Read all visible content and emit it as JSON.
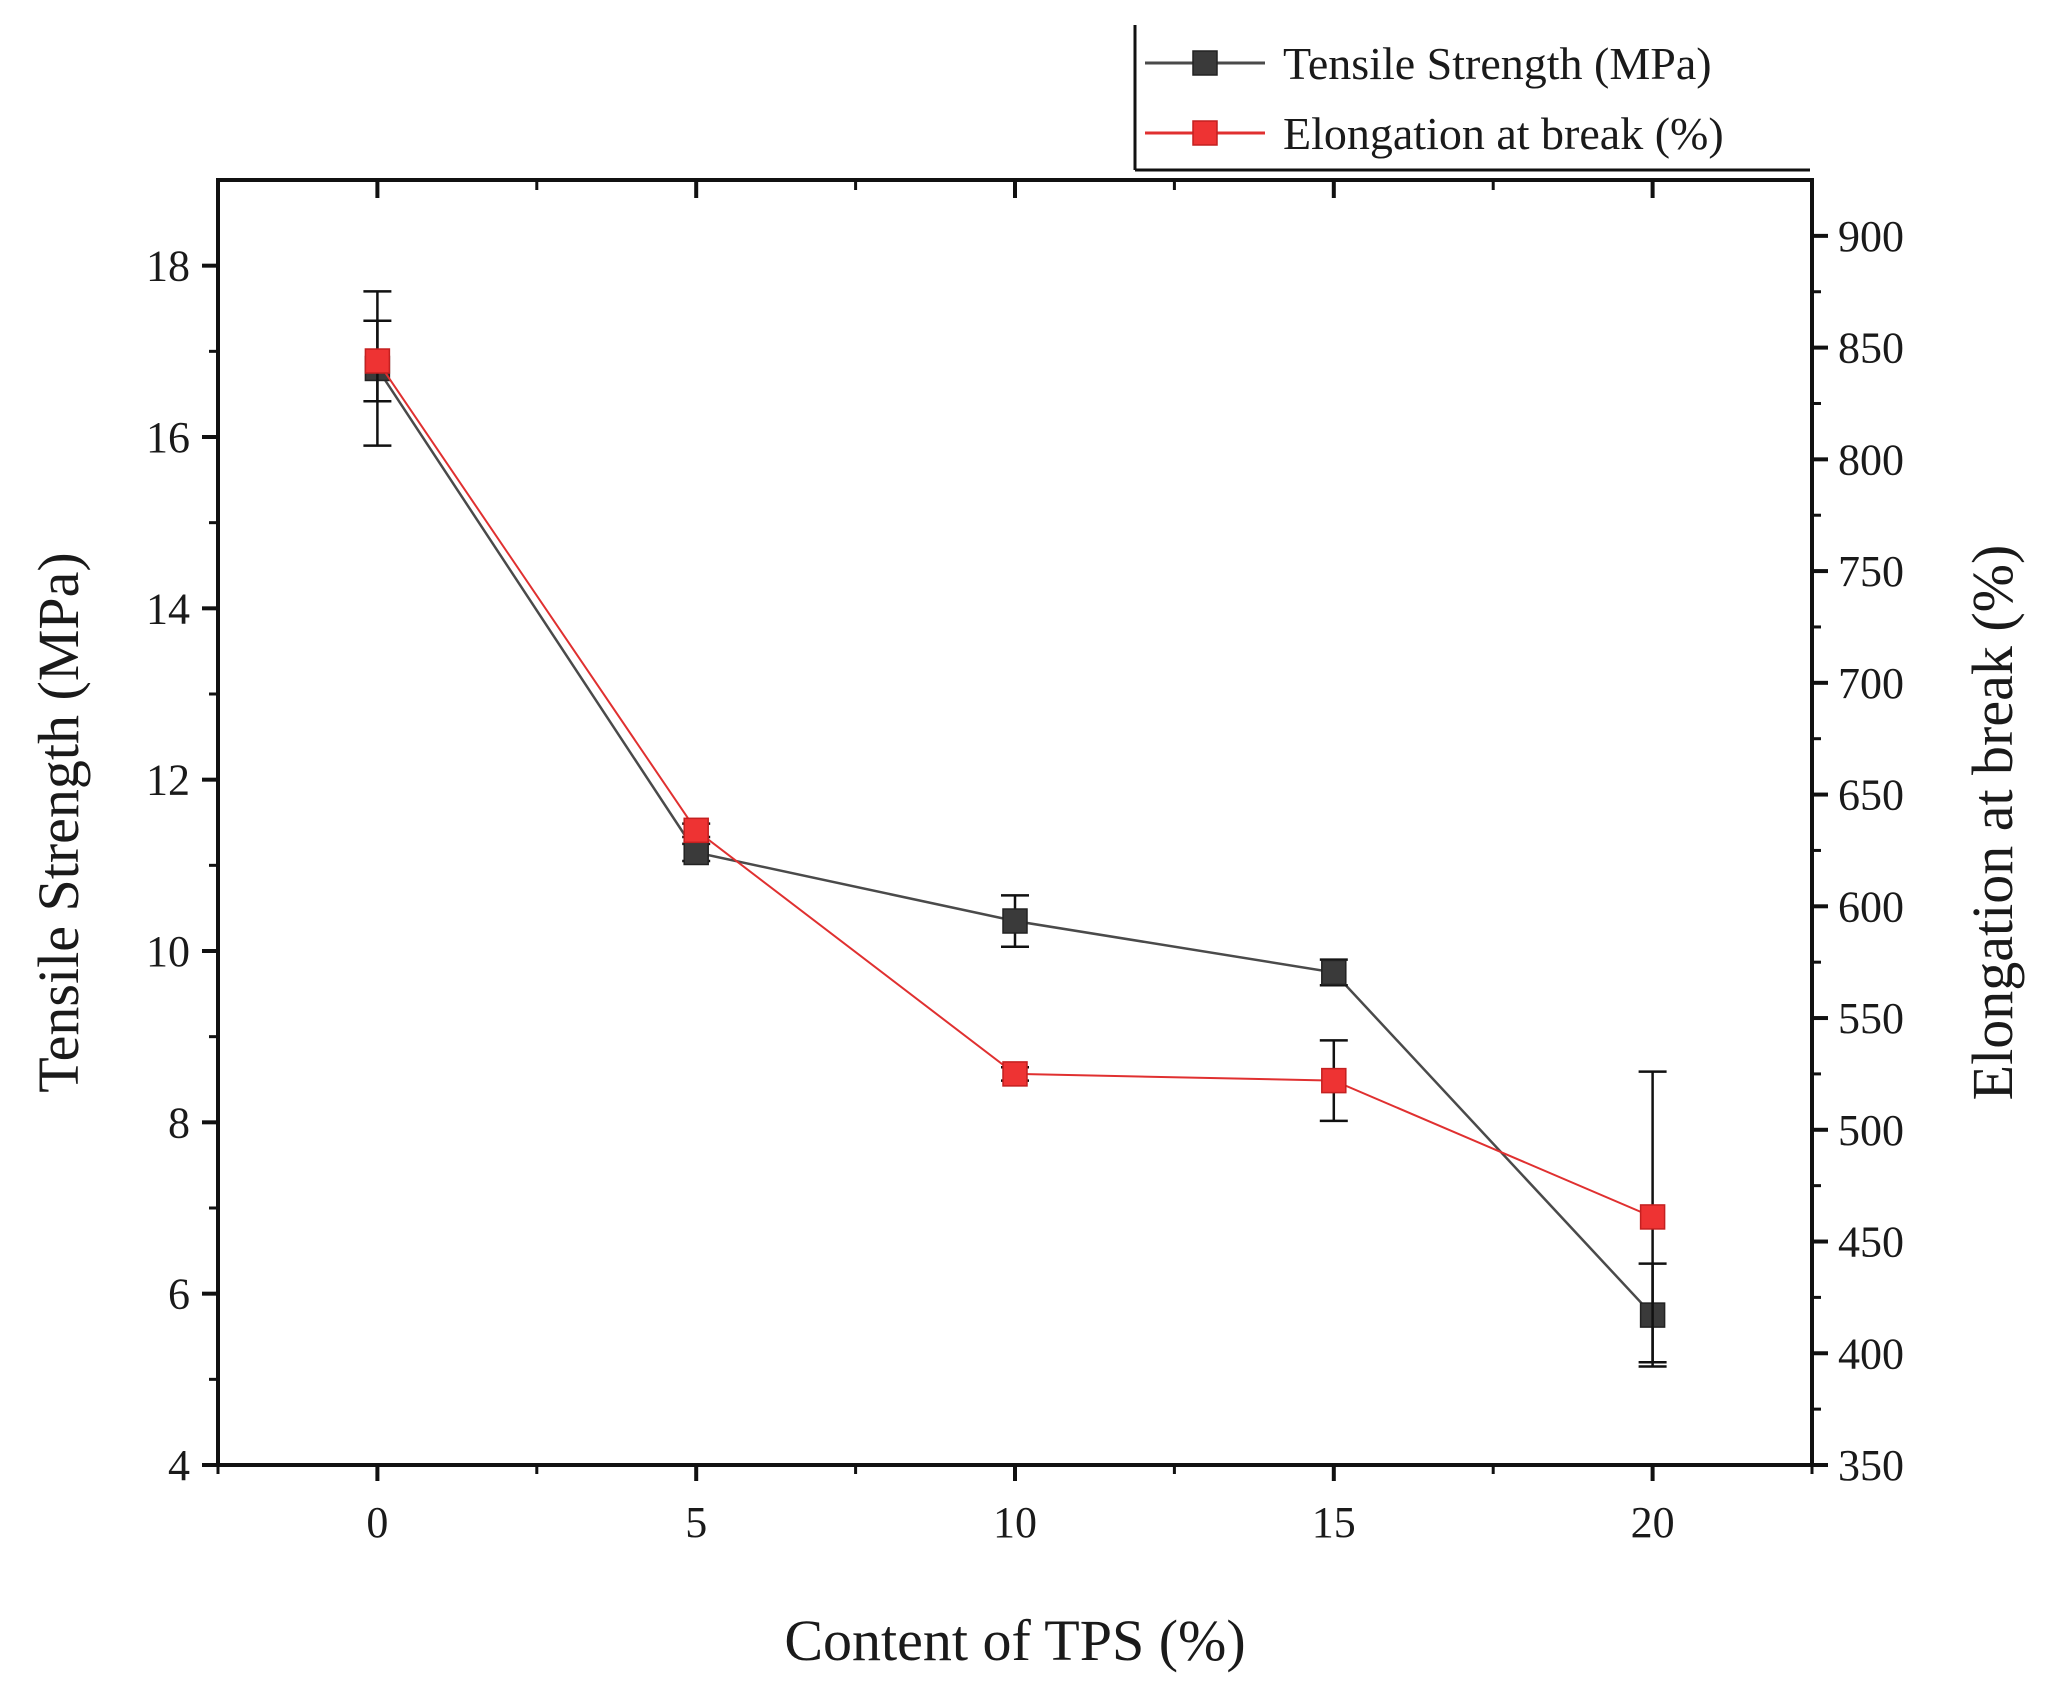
{
  "chart_data": {
    "type": "line",
    "x": [
      0,
      5,
      10,
      15,
      20
    ],
    "xlabel": "Content of TPS (%)",
    "ylabel_left": "Tensile Strength (MPa)",
    "ylabel_right": "Elongation at break (%)",
    "xlim": [
      -2.5,
      22.5
    ],
    "ylim_left": [
      4,
      19
    ],
    "ylim_right": [
      350,
      925
    ],
    "xticks": [
      0,
      5,
      10,
      15,
      20
    ],
    "yticks_left": [
      4,
      6,
      8,
      10,
      12,
      14,
      16,
      18
    ],
    "yticks_right": [
      350,
      400,
      450,
      500,
      550,
      600,
      650,
      700,
      750,
      800,
      850,
      900
    ],
    "legend_position": "top-right, outside above plot",
    "series": [
      {
        "name": "Tensile Strength (MPa)",
        "axis": "left",
        "color": "#3a3a3a",
        "line": "#4a4a4a",
        "values": [
          16.8,
          11.15,
          10.35,
          9.75,
          5.75
        ],
        "error": [
          0.9,
          0.1,
          0.3,
          0.15,
          0.6
        ]
      },
      {
        "name": "Elongation at break (%)",
        "axis": "right",
        "color": "#ee3333",
        "line": "#e03030",
        "values": [
          844,
          634,
          525,
          522,
          461
        ],
        "error": [
          18,
          3,
          3,
          18,
          65
        ]
      }
    ]
  }
}
